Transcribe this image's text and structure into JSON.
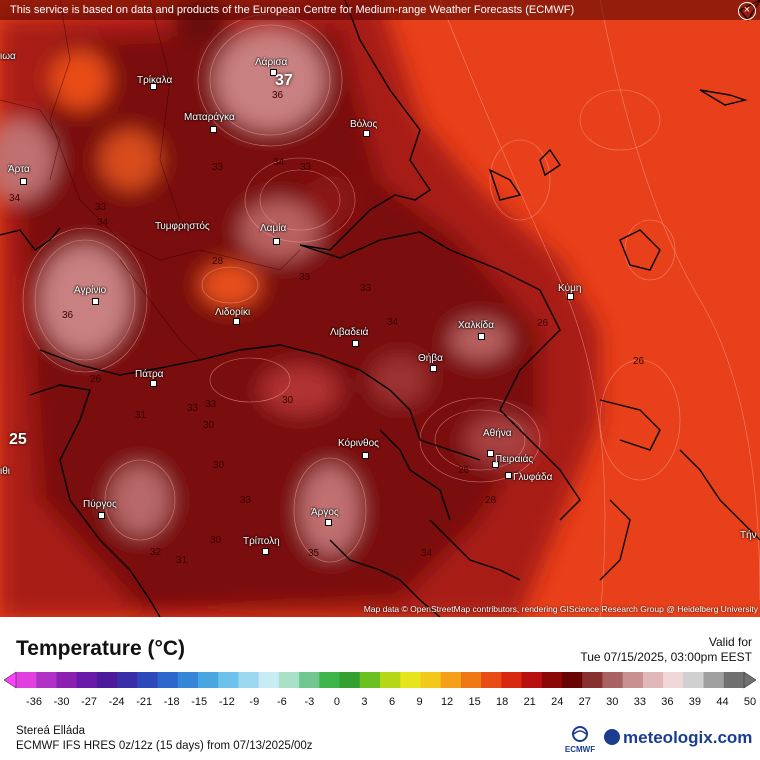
{
  "banner": {
    "text": "This service is based on data and products of the European Centre for Medium-range Weather Forecasts (ECMWF)",
    "close": "×"
  },
  "attribution": "Map data © OpenStreetMap contributors, rendering GIScience Research Group @ Heidelberg University",
  "cities": [
    {
      "key": "larisa",
      "name": "Λάρισα"
    },
    {
      "key": "trikala",
      "name": "Τρίκαλα"
    },
    {
      "key": "volos",
      "name": "Βόλος"
    },
    {
      "key": "mataragka",
      "name": "Ματαράγκα"
    },
    {
      "key": "arta",
      "name": "Άρτα"
    },
    {
      "key": "tymfristos",
      "name": "Τυμφρηστός"
    },
    {
      "key": "lamia",
      "name": "Λαμία"
    },
    {
      "key": "agrinio",
      "name": "Αγρίνιο"
    },
    {
      "key": "lidoriki",
      "name": "Λιδορίκι"
    },
    {
      "key": "kymi",
      "name": "Κύμη"
    },
    {
      "key": "livadeia",
      "name": "Λιβαδειά"
    },
    {
      "key": "chalkida",
      "name": "Χαλκίδα"
    },
    {
      "key": "thiva",
      "name": "Θήβα"
    },
    {
      "key": "patra",
      "name": "Πάτρα"
    },
    {
      "key": "athina",
      "name": "Αθήνα"
    },
    {
      "key": "korinthos",
      "name": "Κόρινθος"
    },
    {
      "key": "peiraias",
      "name": "Πειραιάς"
    },
    {
      "key": "glyfada",
      "name": "Γλυφάδα"
    },
    {
      "key": "pyrgos",
      "name": "Πύργος"
    },
    {
      "key": "argos",
      "name": "Άργος"
    },
    {
      "key": "tripoli",
      "name": "Τρίπολη"
    },
    {
      "key": "edge_left",
      "name": "ιωα"
    },
    {
      "key": "edge_left2",
      "name": "ιθι"
    },
    {
      "key": "edge_right",
      "name": "Τήν"
    }
  ],
  "temp_labels": [
    "37",
    "36",
    "33",
    "34",
    "33",
    "34",
    "34",
    "33",
    "28",
    "36",
    "33",
    "33",
    "26",
    "34",
    "30",
    "30",
    "26",
    "33",
    "33",
    "30",
    "31",
    "33",
    "26",
    "26",
    "28",
    "35",
    "30",
    "32",
    "31",
    "34",
    "25"
  ],
  "highlight_labels": [
    "37",
    "25"
  ],
  "legend": {
    "title": "Temperature (°C)",
    "valid_label": "Valid for",
    "valid_time": "Tue 07/15/2025, 03:00pm EEST",
    "ticks": [
      "-36",
      "-30",
      "-27",
      "-24",
      "-21",
      "-18",
      "-15",
      "-12",
      "-9",
      "-6",
      "-3",
      "0",
      "3",
      "6",
      "9",
      "12",
      "15",
      "18",
      "21",
      "24",
      "27",
      "30",
      "33",
      "36",
      "39",
      "44",
      "50"
    ],
    "colors": [
      "#e040e0",
      "#b030c8",
      "#8a1fb0",
      "#6a1aa8",
      "#4b1a9c",
      "#3a2ea8",
      "#2c48bb",
      "#2a66cc",
      "#3686d8",
      "#4aa6e0",
      "#6cc2ea",
      "#9cd8f0",
      "#c8ecf4",
      "#a8e0c8",
      "#70c890",
      "#3cb44a",
      "#34a030",
      "#6cc020",
      "#b4d818",
      "#e8e41c",
      "#f4c81a",
      "#f4a018",
      "#f07814",
      "#e84c14",
      "#d82810",
      "#b81010",
      "#8c0808",
      "#680404",
      "#883030",
      "#a86060",
      "#c89090",
      "#e0b8b8",
      "#f0d8d8",
      "#d0d0d0",
      "#a0a0a0",
      "#707070"
    ],
    "region": "Stereá Elláda",
    "model": "ECMWF IFS HRES 0z/12z (15 days) from 07/13/2025/00z",
    "ecmwf_logo": "ECMWF",
    "meteologix_logo": "meteologix.com"
  }
}
